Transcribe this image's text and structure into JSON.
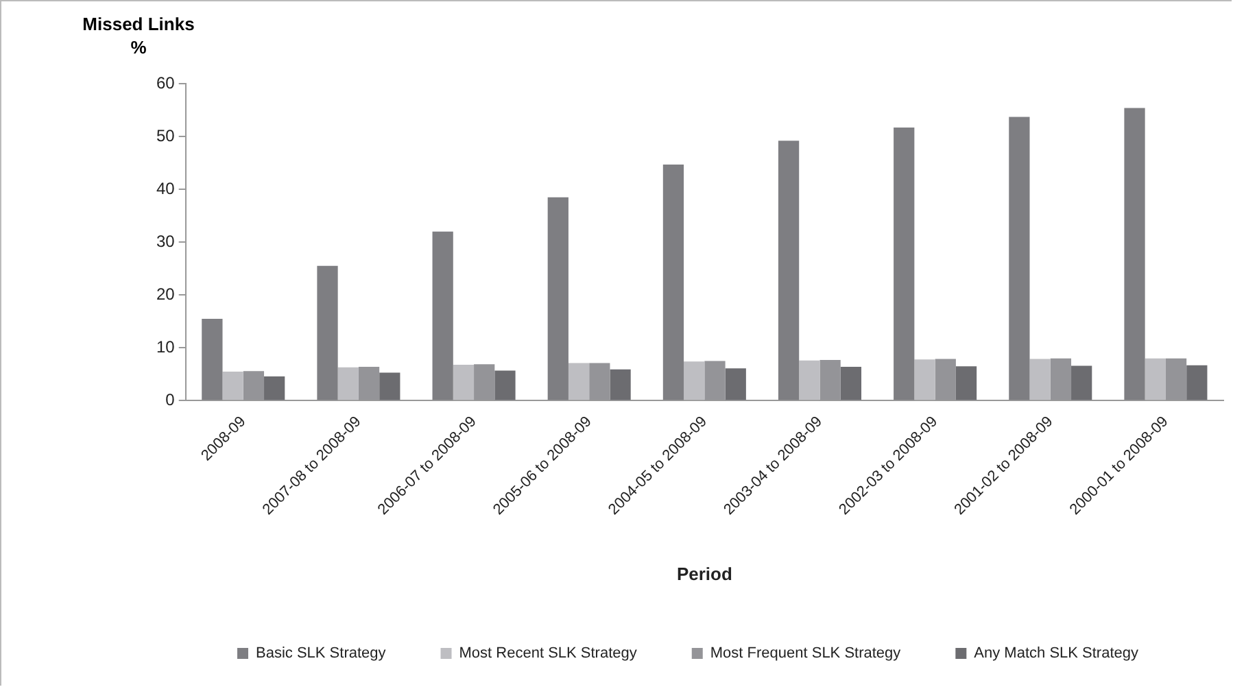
{
  "chart_data": {
    "type": "bar",
    "xlabel": "Period",
    "ylabel": "Missed Links\n%",
    "categories": [
      "2008-09",
      "2007-08 to 2008-09",
      "2006-07 to 2008-09",
      "2005-06 to 2008-09",
      "2004-05 to 2008-09",
      "2003-04 to 2008-09",
      "2002-03 to 2008-09",
      "2001-02 to 2008-09",
      "2000-01 to 2008-09"
    ],
    "series": [
      {
        "name": "Basic SLK Strategy",
        "color": "#7e7e82",
        "values": [
          15.5,
          25.5,
          32,
          38.5,
          44.7,
          49.2,
          51.7,
          53.7,
          55.4
        ]
      },
      {
        "name": "Most Recent SLK Strategy",
        "color": "#bebec2",
        "values": [
          5.5,
          6.3,
          6.8,
          7.1,
          7.4,
          7.6,
          7.8,
          7.9,
          8.0
        ]
      },
      {
        "name": "Most Frequent SLK Strategy",
        "color": "#949498",
        "values": [
          5.6,
          6.4,
          6.9,
          7.1,
          7.5,
          7.7,
          7.9,
          8.0,
          8.0
        ]
      },
      {
        "name": "Any Match SLK Strategy",
        "color": "#6c6c70",
        "values": [
          4.6,
          5.3,
          5.7,
          5.9,
          6.1,
          6.4,
          6.5,
          6.6,
          6.7
        ]
      }
    ],
    "ylim": [
      0,
      60
    ],
    "yticks": [
      0,
      10,
      20,
      30,
      40,
      50,
      60
    ],
    "grid": false,
    "legend": "bottom"
  }
}
